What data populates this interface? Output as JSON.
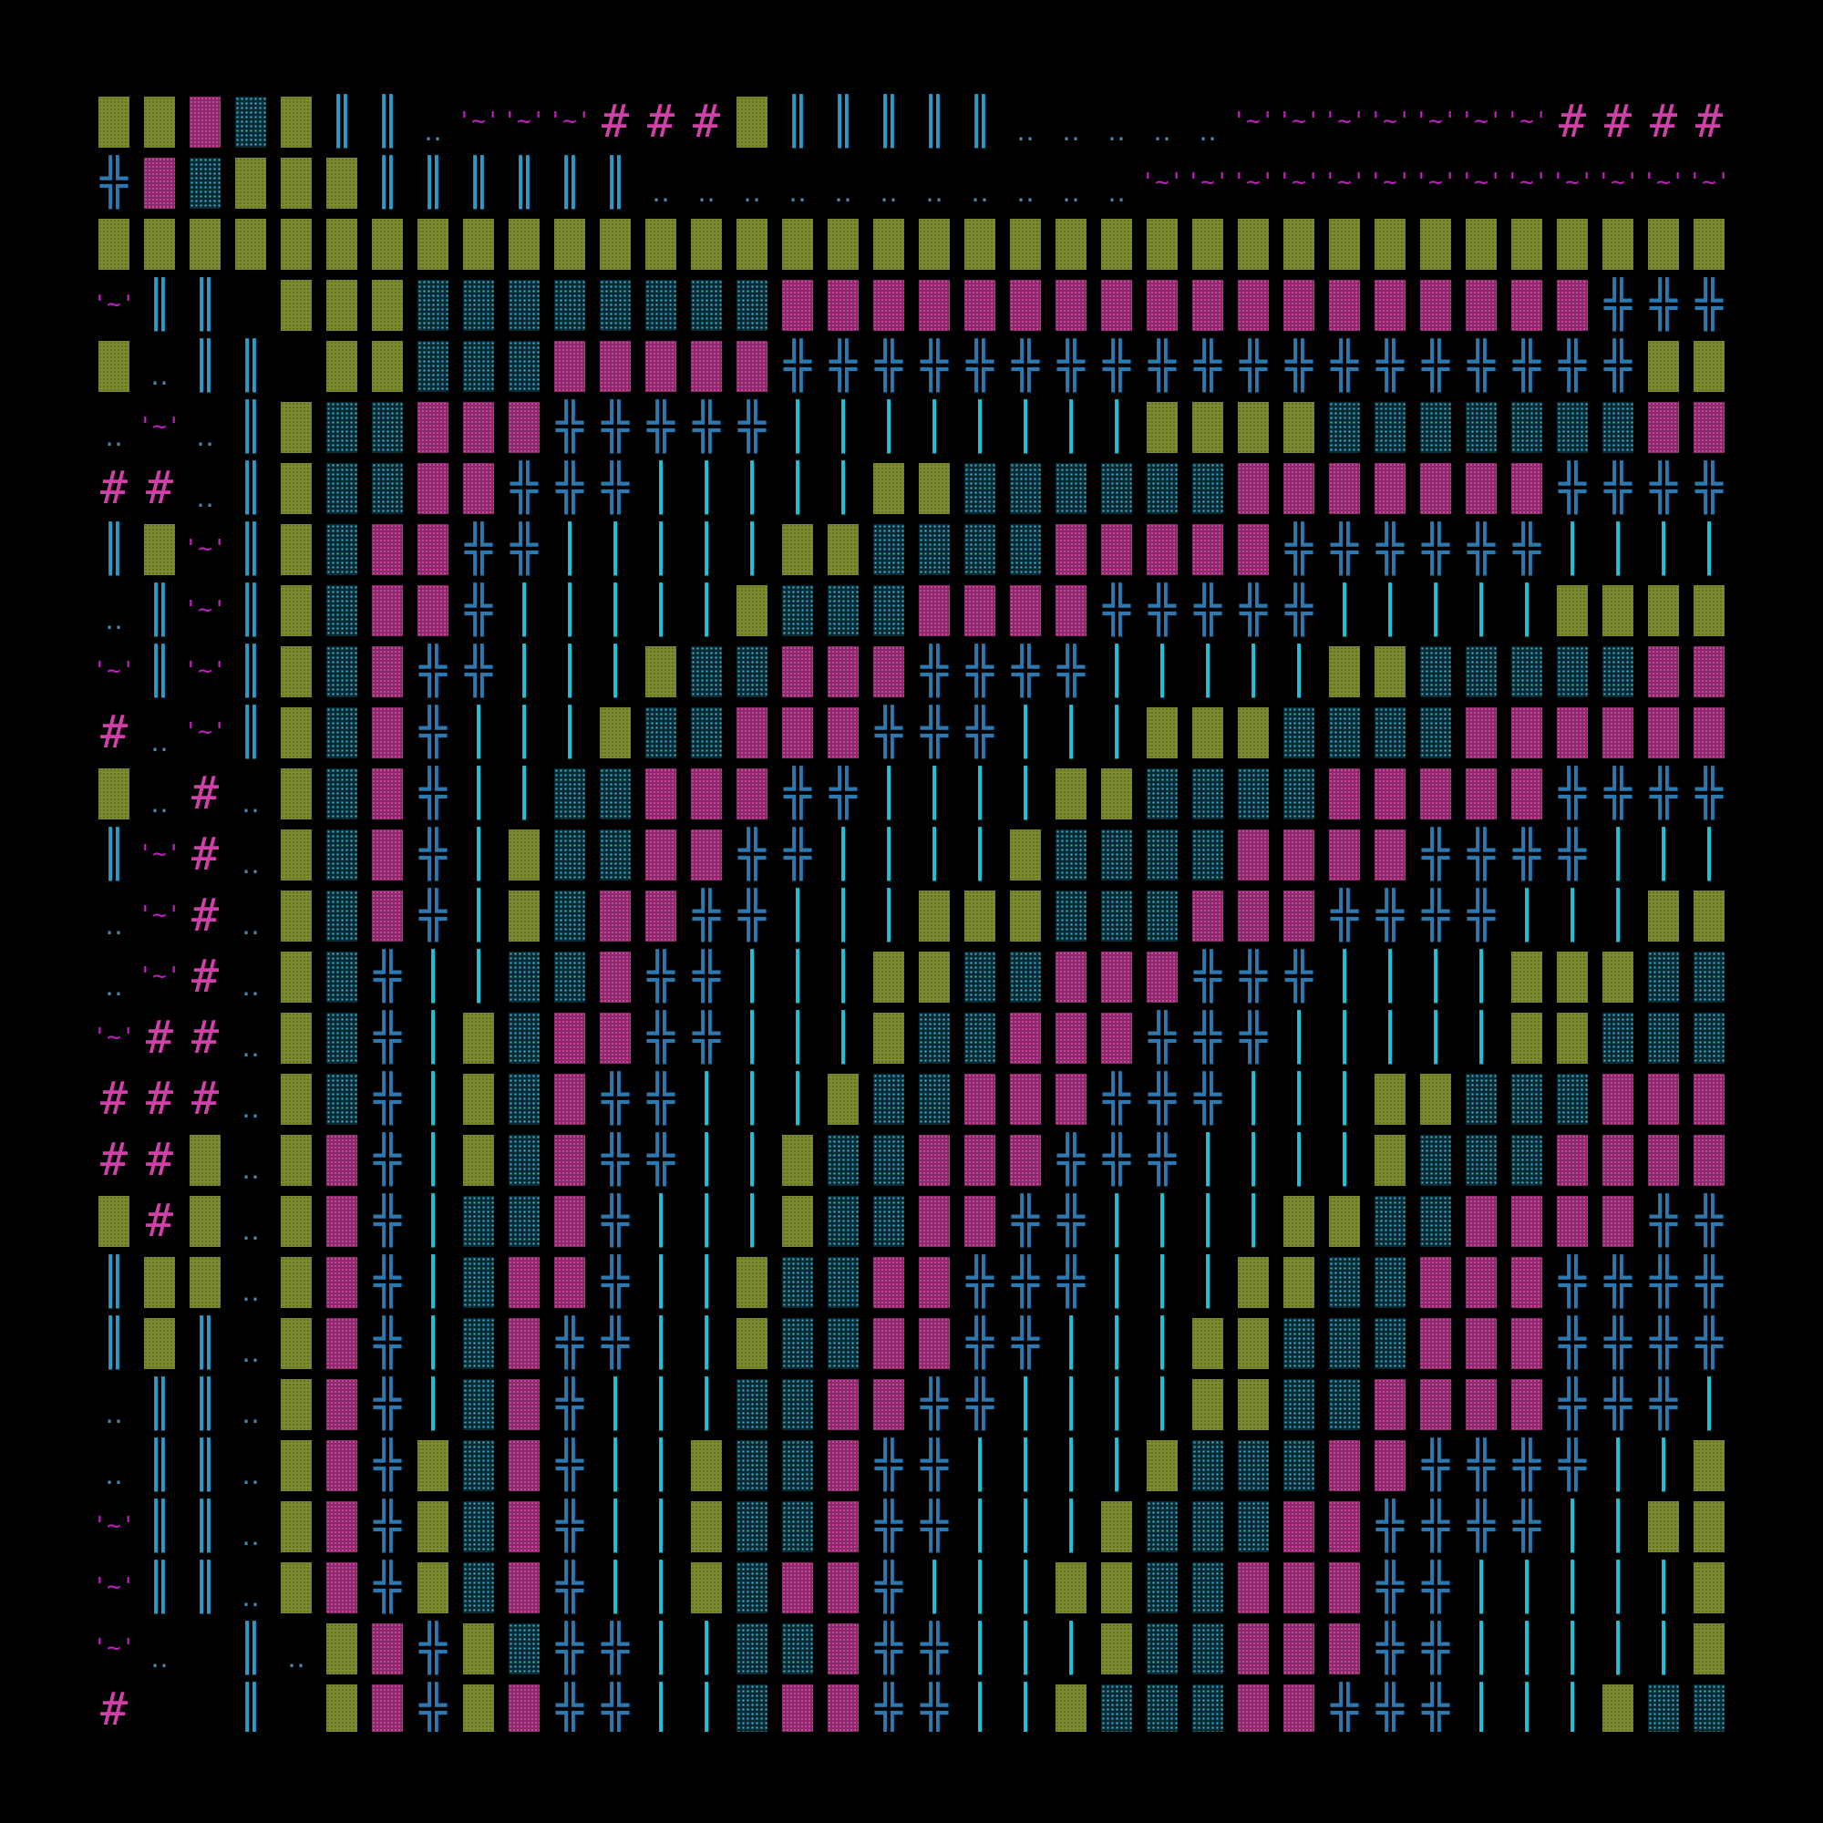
{
  "grid": {
    "cols": 36,
    "rows": 27,
    "legend": {
      "O": "olive-block",
      "P": "pink-block",
      "D": "cyan-dot-block",
      "H": "cross-glyph",
      "I": "double-bar",
      "|": "single-bar",
      ".": "dots",
      "~": "tilde-pair",
      "#": "hash",
      " ": "empty"
    },
    "colors": {
      "O": "#7d8a2f",
      "P": "#c0409a",
      "D": "#3bbcd8",
      "H": "#2e78b0",
      "I": "#2e9ac8",
      "|": "#25c0d8",
      ".": "#4a86a8",
      "~": "#c020c0",
      "#": "#d040a8"
    },
    "rows_data": [
      "OOPDOII.~~~###OIIIII.....~~~~~~~####",
      "HPDOOOIIIIII...........~~~~~~~~~~~~~",
      "OOOOOOOOOOOOOOOOOOOOOOOOOOOOOOOOOOOO",
      "~II OOODDDDDDDDPPPPPPPPPPPPPPPPPPHHH",
      "O.II OODDDPPPPPHHHHHHHHHHHHHHHHHHHOO",
      ".~.IODDPPPHHHHH||||||||OOOODDDDDDDPP",
      "##.IODDPPHHH|||||OODDDDDDPPPPPPPHHHH",
      "IO~IODPPHH|||||OODDDDPPPPPHHHHHH||||",
      ".I~IODPPH|||||ODDDPPPPHHHHH|||||OOOO",
      "~I~IODPHH|||ODDPPPHHHH|||||OODDDDDPP",
      "#.~IODPH|||ODDPPPHHH|||OOODDDDPPPPPP",
      "O.#.ODPH||DDPPPHH||||OODDDDPPPPPHHHH",
      "I~#.ODPH|ODDPPHH||||ODDDDPPPPHHHH|||",
      ".~#.ODPH|ODPPHH|||OOODDDPPPHHHH|||OO",
      ".~#.ODH||DDPHH|||OODDPPPHHH||||OOODD",
      "~##.ODH|ODPPHH|||ODDPPPHHH|||||OODDD",
      "###.ODH|ODPHH|||ODDPPPHHH|||OODDDPPP",
      "##O.OPH|ODPHH||ODDPPPHHH||||ODDDPPPP",
      "O#O.OPH|DDPH|||ODDPPHH||||OODDPPPPHH",
      "IOO.OPH|DPPH||ODDPPHHH|||OODDPPPHHHH",
      "IOI.OPH|DPHH||ODDPPHH|||OODDDPPPHHHH",
      ".II.OPH|DPH|||DDPPHH||||OODDPPPPHHH|",
      ".II.OPHODPH||ODDPHH||||ODDDPPHHHH||O",
      "~II.OPHODPH||ODDPHH|||ODDDPPHHHH||OO",
      "~II.OPHODPH||ODPPH|||OODDPPPHH|||||O",
      "~. I.OPHODHH||DDPHH|||ODDPPPHH|||||O",
      "#  I OPHOPHH||DPPHH||ODDDPPHHH|||ODD"
    ]
  }
}
